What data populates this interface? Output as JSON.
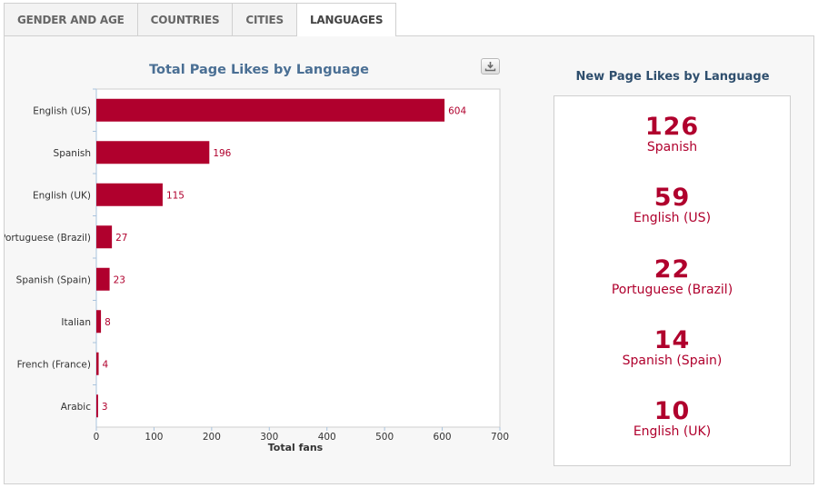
{
  "tabs": [
    {
      "label": "GENDER AND AGE",
      "active": false
    },
    {
      "label": "COUNTRIES",
      "active": false
    },
    {
      "label": "CITIES",
      "active": false
    },
    {
      "label": "LANGUAGES",
      "active": true
    }
  ],
  "left_chart": {
    "title": "Total Page Likes by Language",
    "download_icon": "download-icon"
  },
  "right_panel": {
    "title": "New Page Likes by Language",
    "items": [
      {
        "value": "126",
        "label": "Spanish"
      },
      {
        "value": "59",
        "label": "English (US)"
      },
      {
        "value": "22",
        "label": "Portuguese (Brazil)"
      },
      {
        "value": "14",
        "label": "Spanish (Spain)"
      },
      {
        "value": "10",
        "label": "English (UK)"
      }
    ]
  },
  "colors": {
    "bar": "#b0002d",
    "accent_text": "#b0002d",
    "title_blue": "#4a6f94"
  },
  "chart_data": [
    {
      "type": "bar",
      "orientation": "horizontal",
      "title": "Total Page Likes by Language",
      "categories": [
        "English (US)",
        "Spanish",
        "English (UK)",
        "Portuguese (Brazil)",
        "Spanish (Spain)",
        "Italian",
        "French (France)",
        "Arabic"
      ],
      "values": [
        604,
        196,
        115,
        27,
        23,
        8,
        4,
        3
      ],
      "xlabel": "Total fans",
      "xlim": [
        0,
        700
      ],
      "xticks": [
        0,
        100,
        200,
        300,
        400,
        500,
        600,
        700
      ],
      "grid": false,
      "data_labels": true
    },
    {
      "type": "table",
      "title": "New Page Likes by Language",
      "categories": [
        "Spanish",
        "English (US)",
        "Portuguese (Brazil)",
        "Spanish (Spain)",
        "English (UK)"
      ],
      "values": [
        126,
        59,
        22,
        14,
        10
      ]
    }
  ]
}
